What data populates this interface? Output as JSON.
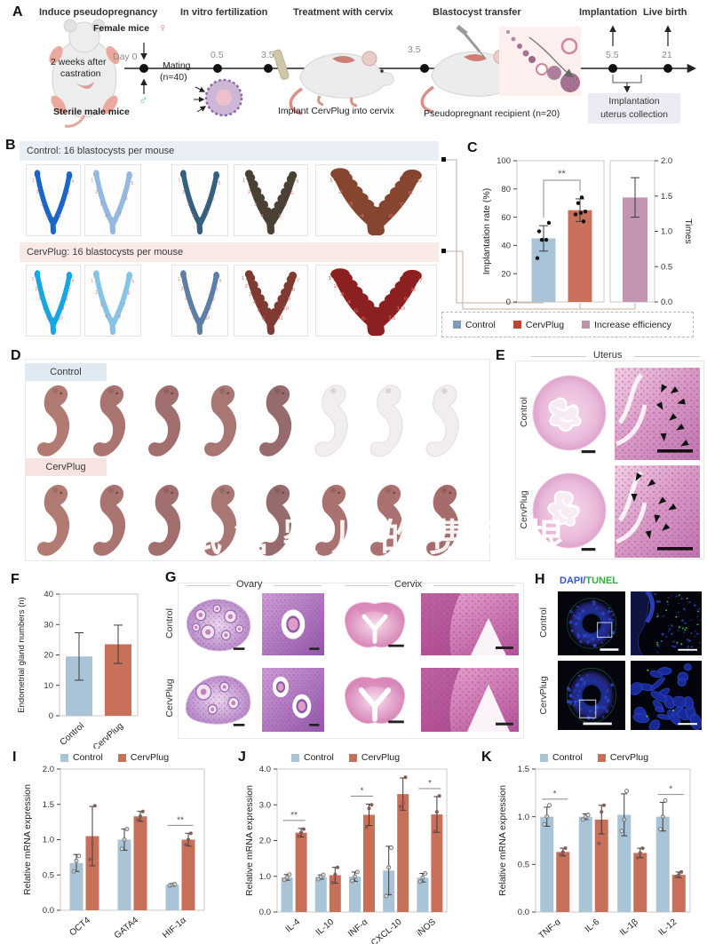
{
  "panel_labels": {
    "A": "A",
    "B": "B",
    "C": "C",
    "D": "D",
    "E": "E",
    "F": "F",
    "G": "G",
    "H": "H",
    "I": "I",
    "J": "J",
    "K": "K"
  },
  "colors": {
    "control_bar": "#a9c3d7",
    "cervplug_bar": "#c8705a",
    "increase_bar": "#c395b3",
    "legend_control": "#7d9cba",
    "legend_cervplug": "#b54834",
    "legend_increase": "#bd93ab",
    "band_blue": "#e9eff4",
    "band_pink": "#faeae7",
    "band_blue_d": "#dfeaf2",
    "band_pink_d": "#f7e4e1",
    "dapi_blue": "#2f55d4",
    "tunel_green": "#2fae3e",
    "site_number_red": "#d36b6b"
  },
  "panelA": {
    "steps": [
      "Induce pseudopregnancy",
      "In vitro fertilization",
      "Treatment with cervix",
      "Blastocyst transfer",
      "Implantation",
      "Live birth"
    ],
    "female": "Female mice",
    "female_symbol": "♀",
    "male_symbol": "♂",
    "castration1": "2 weeks after",
    "castration2": "castration",
    "sterile": "Sterile male mice",
    "day0": "Day 0",
    "mating1": "Mating",
    "mating2": "(n=40)",
    "t05": "0.5",
    "t35a": "3.5",
    "t35b": "3.5",
    "t55": "5.5",
    "t21": "21",
    "implant": "Implant CervPlug into cervix",
    "recipient": "Pseudopregnant recipient (n=20)",
    "collection1": "Implantation",
    "collection2": "uterus collection"
  },
  "panelB": {
    "control_header": "Control: 16 blastocysts per mouse",
    "cervplug_header": "CervPlug: 16 blastocysts per mouse",
    "control_sites": [
      8,
      7,
      7,
      8,
      8
    ],
    "cervplug_sites": [
      10,
      8,
      10,
      11,
      11
    ],
    "colors_control": [
      "#1b64c8",
      "#93b9e0",
      "#35617e",
      "#4a4034",
      "#86452f"
    ],
    "colors_cervplug": [
      "#16a6e3",
      "#86c4e6",
      "#5b7fa6",
      "#7f3a31",
      "#8c2020"
    ]
  },
  "panelD": {
    "control": "Control",
    "cervplug": "CervPlug",
    "control_pups": [
      1,
      1,
      1,
      1,
      1,
      0,
      0,
      0
    ],
    "cervplug_pups": [
      1,
      1,
      1,
      1,
      1,
      1,
      1,
      1
    ],
    "watermark": "试管婴儿的费用根"
  },
  "panelE": {
    "title": "Uterus",
    "rows": [
      "Control",
      "CervPlug"
    ]
  },
  "panelG": {
    "col1": "Ovary",
    "col2": "Cervix",
    "rows": [
      "Control",
      "CervPlug"
    ]
  },
  "panelH": {
    "dapi": "DAPI",
    "slash": "/",
    "tunel": "TUNEL",
    "rows": [
      "Control",
      "CervPlug"
    ]
  },
  "chart_data": [
    {
      "id": "C",
      "type": "bar",
      "ylabel": "Implantation rate (%)",
      "ylim": [
        0,
        100
      ],
      "yticks": [
        "0",
        "20",
        "40",
        "60",
        "80",
        "100"
      ],
      "categories": [
        "Control",
        "CervPlug"
      ],
      "values": [
        45,
        65
      ],
      "errors": [
        9,
        8
      ],
      "points": [
        [
          31,
          44,
          44,
          50,
          56
        ],
        [
          57,
          62,
          63,
          64,
          70,
          74
        ]
      ],
      "sig": "**",
      "secondary": {
        "ylabel": "Times",
        "ylim": [
          0,
          2
        ],
        "yticks": [
          "0.0",
          "0.5",
          "1.0",
          "1.5",
          "2.0"
        ],
        "category": "Increase efficiency",
        "value": 1.48,
        "error": 0.28
      },
      "legend": [
        "Control",
        "CervPlug",
        "Increase efficiency"
      ]
    },
    {
      "id": "F",
      "type": "bar",
      "ylabel": "Endometrial gland numbers (n)",
      "ylim": [
        0,
        40
      ],
      "yticks": [
        "0",
        "10",
        "20",
        "30",
        "40"
      ],
      "categories": [
        "Control",
        "CervPlug"
      ],
      "values": [
        19.5,
        23.5
      ],
      "errors": [
        7.8,
        6.3
      ]
    },
    {
      "id": "I",
      "type": "grouped_bar",
      "ylabel": "Relative mRNA expression",
      "ylim": [
        0,
        2
      ],
      "yticks": [
        "0.0",
        "0.5",
        "1.0",
        "1.5",
        "2.0"
      ],
      "categories": [
        "OCT4",
        "GATA4",
        "HIF-1α"
      ],
      "legend": [
        "Control",
        "CervPlug"
      ],
      "series": [
        {
          "name": "Control",
          "values": [
            0.67,
            1.0,
            0.36
          ],
          "errors": [
            0.12,
            0.15,
            0.02
          ],
          "points": [
            [
              0.55,
              0.7,
              0.77
            ],
            [
              0.87,
              1.0,
              1.15
            ],
            [
              0.35,
              0.36,
              0.37
            ]
          ]
        },
        {
          "name": "CervPlug",
          "values": [
            1.05,
            1.33,
            1.0
          ],
          "errors": [
            0.42,
            0.07,
            0.09
          ],
          "points": [
            [
              0.72,
              0.95,
              1.48
            ],
            [
              1.28,
              1.33,
              1.4
            ],
            [
              0.93,
              1.0,
              1.09
            ]
          ]
        }
      ],
      "sig": [
        {
          "group": 2,
          "label": "**"
        }
      ]
    },
    {
      "id": "J",
      "type": "grouped_bar",
      "ylabel": "Relative mRNA expression",
      "ylim": [
        0,
        4
      ],
      "yticks": [
        "0.0",
        "1.0",
        "2.0",
        "3.0",
        "4.0"
      ],
      "categories": [
        "IL-4",
        "IL-10",
        "INF-α",
        "CXCL-10",
        "iNOS"
      ],
      "legend": [
        "Control",
        "CervPlug"
      ],
      "series": [
        {
          "name": "Control",
          "values": [
            0.97,
            0.98,
            0.99,
            1.16,
            0.96
          ],
          "errors": [
            0.08,
            0.06,
            0.13,
            0.68,
            0.12
          ],
          "points": [
            [
              0.9,
              0.97,
              1.05
            ],
            [
              0.92,
              0.98,
              1.04
            ],
            [
              0.87,
              0.99,
              1.12
            ],
            [
              0.45,
              1.25,
              1.8
            ],
            [
              0.85,
              0.96,
              1.08
            ]
          ]
        },
        {
          "name": "CervPlug",
          "values": [
            2.22,
            1.03,
            2.72,
            3.3,
            2.73
          ],
          "errors": [
            0.12,
            0.22,
            0.3,
            0.45,
            0.5
          ],
          "points": [
            [
              2.12,
              2.22,
              2.32
            ],
            [
              0.82,
              1.05,
              1.25
            ],
            [
              2.37,
              2.9,
              3.0
            ],
            [
              2.95,
              3.05,
              3.77
            ],
            [
              2.25,
              2.8,
              3.25
            ]
          ]
        }
      ],
      "sig": [
        {
          "group": 0,
          "label": "**"
        },
        {
          "group": 2,
          "label": "*"
        },
        {
          "group": 4,
          "label": "*"
        }
      ]
    },
    {
      "id": "K",
      "type": "grouped_bar",
      "ylabel": "Relative mRNA expression",
      "ylim": [
        0,
        1.5
      ],
      "yticks": [
        "0.0",
        "0.5",
        "1.0",
        "1.5"
      ],
      "categories": [
        "TNF-α",
        "IL-6",
        "IL-1β",
        "IL-12"
      ],
      "legend": [
        "Control",
        "CervPlug"
      ],
      "series": [
        {
          "name": "Control",
          "values": [
            1.0,
            1.0,
            1.02,
            1.0
          ],
          "errors": [
            0.1,
            0.03,
            0.22,
            0.15
          ],
          "points": [
            [
              0.92,
              1.0,
              1.12
            ],
            [
              0.97,
              1.0,
              1.02
            ],
            [
              0.85,
              0.97,
              1.27
            ],
            [
              0.87,
              1.0,
              1.17
            ]
          ]
        },
        {
          "name": "CervPlug",
          "values": [
            0.63,
            0.97,
            0.62,
            0.39
          ],
          "errors": [
            0.04,
            0.15,
            0.05,
            0.03
          ],
          "points": [
            [
              0.6,
              0.63,
              0.67
            ],
            [
              0.72,
              1.05,
              1.12
            ],
            [
              0.57,
              0.62,
              0.67
            ],
            [
              0.37,
              0.39,
              0.42
            ]
          ]
        }
      ],
      "sig": [
        {
          "group": 0,
          "label": "*"
        },
        {
          "group": 3,
          "label": "*"
        }
      ]
    }
  ]
}
